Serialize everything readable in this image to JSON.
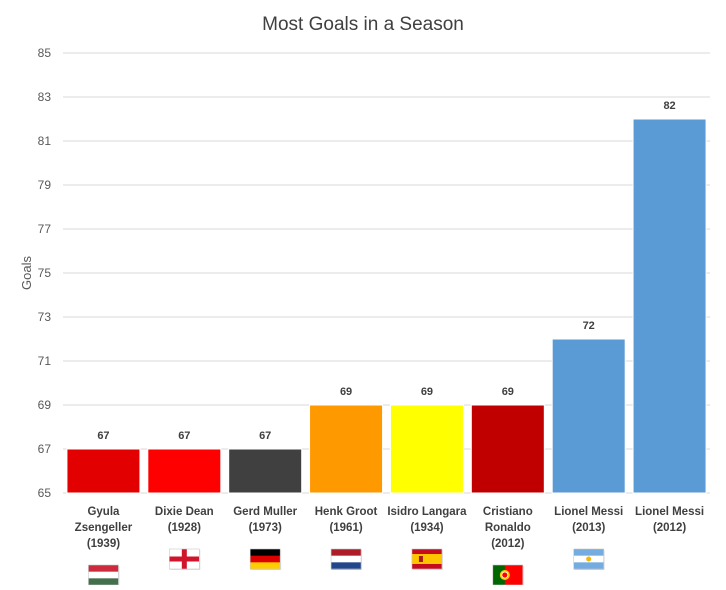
{
  "chart_data": {
    "type": "bar",
    "title": "Most Goals in a Season",
    "xlabel": "",
    "ylabel": "Goals",
    "ylim": [
      65,
      85
    ],
    "yticks": [
      65,
      67,
      69,
      71,
      73,
      75,
      77,
      79,
      81,
      83,
      85
    ],
    "grid": true,
    "legend": "none",
    "categories": [
      [
        "Gyula",
        "Zsengeller",
        "(1939)"
      ],
      [
        "Dixie Dean",
        "(1928)"
      ],
      [
        "Gerd Muller",
        "(1973)"
      ],
      [
        "Henk Groot",
        "(1961)"
      ],
      [
        "Isidro Langara",
        "(1934)"
      ],
      [
        "Cristiano",
        "Ronaldo",
        "(2012)"
      ],
      [
        "Lionel Messi",
        "(2013)"
      ],
      [
        "Lionel Messi",
        "(2012)"
      ]
    ],
    "values": [
      67,
      67,
      67,
      69,
      69,
      69,
      72,
      82
    ],
    "colors": [
      "#e30000",
      "#ff0000",
      "#404040",
      "#ff9900",
      "#ffff00",
      "#c00000",
      "#5b9bd5",
      "#5b9bd5"
    ],
    "flags": [
      "flag-hungary-icon",
      "flag-england-icon",
      "flag-germany-icon",
      "flag-netherlands-icon",
      "flag-spain-icon",
      "flag-portugal-icon",
      "flag-argentina-icon",
      "none"
    ]
  }
}
